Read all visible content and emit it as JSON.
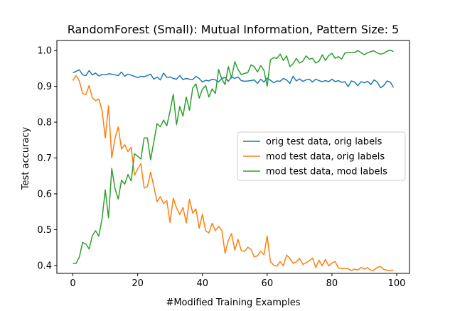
{
  "chart_data": {
    "type": "line",
    "title": "RandomForest (Small): Mutual Information, Pattern Size: 5",
    "xlabel": "#Modified Training Examples",
    "ylabel": "Test accuracy",
    "xlim": [
      -4.95,
      103.95
    ],
    "ylim": [
      0.378,
      1.028
    ],
    "xticks": [
      0,
      20,
      40,
      60,
      80,
      100
    ],
    "xtick_labels": [
      "0",
      "20",
      "40",
      "60",
      "80",
      "100"
    ],
    "yticks": [
      0.4,
      0.5,
      0.6,
      0.7,
      0.8,
      0.9,
      1.0
    ],
    "ytick_labels": [
      "0.4",
      "0.5",
      "0.6",
      "0.7",
      "0.8",
      "0.9",
      "1.0"
    ],
    "grid": false,
    "legend_position": "center-right",
    "x": [
      0,
      1,
      2,
      3,
      4,
      5,
      6,
      7,
      8,
      9,
      10,
      11,
      12,
      13,
      14,
      15,
      16,
      17,
      18,
      19,
      20,
      21,
      22,
      23,
      24,
      25,
      26,
      27,
      28,
      29,
      30,
      31,
      32,
      33,
      34,
      35,
      36,
      37,
      38,
      39,
      40,
      41,
      42,
      43,
      44,
      45,
      46,
      47,
      48,
      49,
      50,
      51,
      52,
      53,
      54,
      55,
      56,
      57,
      58,
      59,
      60,
      61,
      62,
      63,
      64,
      65,
      66,
      67,
      68,
      69,
      70,
      71,
      72,
      73,
      74,
      75,
      76,
      77,
      78,
      79,
      80,
      81,
      82,
      83,
      84,
      85,
      86,
      87,
      88,
      89,
      90,
      91,
      92,
      93,
      94,
      95,
      96,
      97,
      98,
      99
    ],
    "series": [
      {
        "name": "orig test data, orig labels",
        "color": "#1f77b4",
        "values": [
          0.938,
          0.942,
          0.946,
          0.932,
          0.93,
          0.944,
          0.932,
          0.937,
          0.929,
          0.933,
          0.932,
          0.935,
          0.934,
          0.932,
          0.93,
          0.94,
          0.928,
          0.934,
          0.931,
          0.928,
          0.924,
          0.928,
          0.927,
          0.93,
          0.934,
          0.92,
          0.926,
          0.918,
          0.937,
          0.925,
          0.926,
          0.922,
          0.92,
          0.93,
          0.919,
          0.922,
          0.92,
          0.919,
          0.928,
          0.922,
          0.912,
          0.917,
          0.915,
          0.92,
          0.918,
          0.912,
          0.922,
          0.925,
          0.914,
          0.927,
          0.922,
          0.926,
          0.916,
          0.914,
          0.915,
          0.916,
          0.918,
          0.908,
          0.92,
          0.912,
          0.923,
          0.917,
          0.91,
          0.915,
          0.914,
          0.922,
          0.918,
          0.908,
          0.928,
          0.915,
          0.921,
          0.914,
          0.918,
          0.92,
          0.912,
          0.92,
          0.916,
          0.913,
          0.916,
          0.913,
          0.92,
          0.913,
          0.916,
          0.911,
          0.913,
          0.899,
          0.915,
          0.912,
          0.902,
          0.913,
          0.91,
          0.914,
          0.905,
          0.918,
          0.912,
          0.896,
          0.902,
          0.915,
          0.912,
          0.897
        ]
      },
      {
        "name": "mod test data, orig labels",
        "color": "#ff7f0e",
        "values": [
          0.916,
          0.93,
          0.915,
          0.88,
          0.877,
          0.902,
          0.868,
          0.86,
          0.865,
          0.833,
          0.756,
          0.846,
          0.7,
          0.755,
          0.787,
          0.725,
          0.737,
          0.718,
          0.73,
          0.652,
          0.669,
          0.684,
          0.616,
          0.62,
          0.66,
          0.62,
          0.578,
          0.592,
          0.573,
          0.581,
          0.52,
          0.588,
          0.561,
          0.542,
          0.562,
          0.519,
          0.585,
          0.546,
          0.558,
          0.504,
          0.543,
          0.497,
          0.491,
          0.518,
          0.497,
          0.509,
          0.498,
          0.434,
          0.47,
          0.489,
          0.443,
          0.473,
          0.442,
          0.439,
          0.451,
          0.445,
          0.424,
          0.427,
          0.44,
          0.43,
          0.482,
          0.411,
          0.401,
          0.398,
          0.411,
          0.399,
          0.429,
          0.42,
          0.406,
          0.41,
          0.42,
          0.403,
          0.408,
          0.413,
          0.421,
          0.394,
          0.415,
          0.399,
          0.417,
          0.399,
          0.407,
          0.411,
          0.393,
          0.392,
          0.392,
          0.391,
          0.386,
          0.39,
          0.387,
          0.395,
          0.39,
          0.394,
          0.387,
          0.387,
          0.395,
          0.397,
          0.389,
          0.387,
          0.386,
          0.387
        ]
      },
      {
        "name": "mod test data, mod labels",
        "color": "#2ca02c",
        "values": [
          0.406,
          0.406,
          0.424,
          0.464,
          0.46,
          0.446,
          0.483,
          0.497,
          0.482,
          0.53,
          0.611,
          0.533,
          0.671,
          0.615,
          0.585,
          0.638,
          0.627,
          0.654,
          0.636,
          0.712,
          0.705,
          0.697,
          0.756,
          0.756,
          0.695,
          0.746,
          0.796,
          0.787,
          0.806,
          0.79,
          0.831,
          0.878,
          0.793,
          0.844,
          0.817,
          0.87,
          0.833,
          0.895,
          0.907,
          0.867,
          0.892,
          0.902,
          0.87,
          0.893,
          0.88,
          0.947,
          0.92,
          0.905,
          0.955,
          0.923,
          0.969,
          0.947,
          0.933,
          0.936,
          0.938,
          0.96,
          0.955,
          0.94,
          0.958,
          0.945,
          0.9,
          0.974,
          0.98,
          0.978,
          0.99,
          0.972,
          0.985,
          0.955,
          0.963,
          0.978,
          0.965,
          0.97,
          0.985,
          0.976,
          0.978,
          0.965,
          0.97,
          0.988,
          0.972,
          0.986,
          0.992,
          0.978,
          0.983,
          0.976,
          0.993,
          0.994,
          0.994,
          0.994,
          1.0,
          0.994,
          0.988,
          0.994,
          0.997,
          0.999,
          0.993,
          0.99,
          0.992,
          0.998,
          1.001,
          0.997
        ]
      }
    ]
  }
}
